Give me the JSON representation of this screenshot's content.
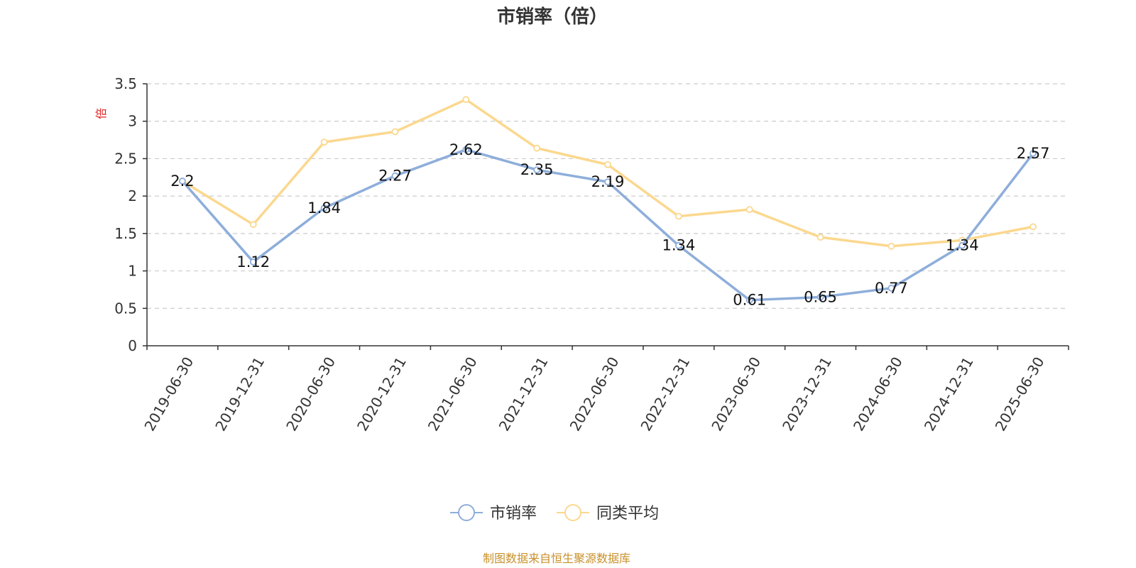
{
  "chart_data": {
    "type": "line",
    "title": "市销率（倍）",
    "ylabel": "倍",
    "ylim": [
      0,
      3.5
    ],
    "yticks": [
      "0",
      "0.5",
      "1",
      "1.5",
      "2",
      "2.5",
      "3",
      "3.5"
    ],
    "grid": true,
    "legend_position": "bottom-center",
    "categories": [
      "2019-06-30",
      "2019-12-31",
      "2020-06-30",
      "2020-12-31",
      "2021-06-30",
      "2021-12-31",
      "2022-06-30",
      "2022-12-31",
      "2023-06-30",
      "2023-12-31",
      "2024-06-30",
      "2024-12-31",
      "2025-06-30"
    ],
    "series": [
      {
        "name": "市销率",
        "color": "#8eaedb",
        "values": [
          2.2,
          1.12,
          1.84,
          2.27,
          2.62,
          2.35,
          2.19,
          1.34,
          0.61,
          0.65,
          0.77,
          1.34,
          2.57
        ],
        "labels": [
          "2.2",
          "1.12",
          "1.84",
          "2.27",
          "2.62",
          "2.35",
          "2.19",
          "1.34",
          "0.61",
          "0.65",
          "0.77",
          "1.34",
          "2.57"
        ]
      },
      {
        "name": "同类平均",
        "color": "#fbd88f",
        "values": [
          2.2,
          1.62,
          2.72,
          2.86,
          3.29,
          2.64,
          2.42,
          1.73,
          1.82,
          1.45,
          1.33,
          1.41,
          1.59
        ]
      }
    ],
    "source": "制图数据来自恒生聚源数据库"
  }
}
